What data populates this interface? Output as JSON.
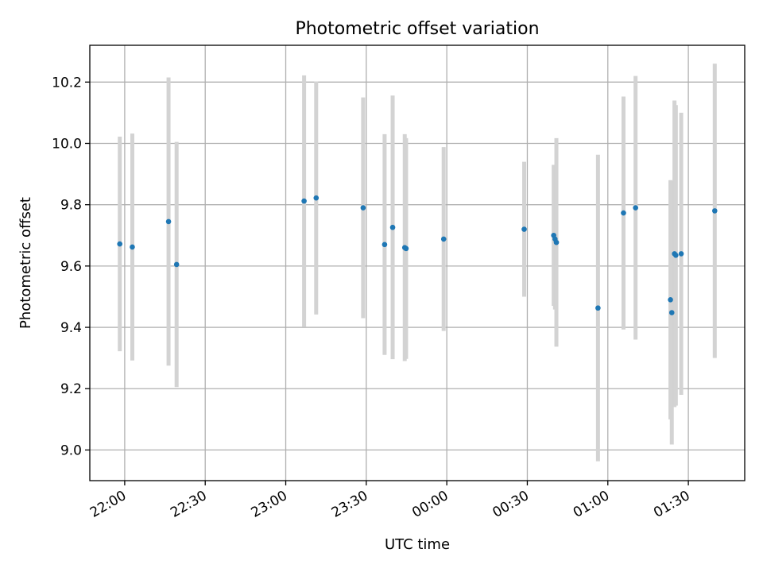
{
  "chart_data": {
    "type": "scatter",
    "title": "Photometric offset variation",
    "xlabel": "UTC time",
    "ylabel": "Photometric offset",
    "grid": true,
    "x_unit": "UTC time (HH:MM)",
    "xlim": [
      "21:47",
      "01:51"
    ],
    "ylim": [
      8.9,
      10.32
    ],
    "x_ticks": [
      "22:00",
      "22:30",
      "23:00",
      "23:30",
      "00:00",
      "00:30",
      "01:00",
      "01:30"
    ],
    "y_ticks": [
      9.0,
      9.2,
      9.4,
      9.6,
      9.8,
      10.0,
      10.2
    ],
    "point_color": "#1f77b4",
    "errorbar_color": "#d3d3d3",
    "points": [
      {
        "x": "21:58:10",
        "y": 9.672,
        "err": 0.35
      },
      {
        "x": "22:02:50",
        "y": 9.662,
        "err": 0.37
      },
      {
        "x": "22:16:20",
        "y": 9.745,
        "err": 0.47
      },
      {
        "x": "22:19:20",
        "y": 9.605,
        "err": 0.4
      },
      {
        "x": "23:06:50",
        "y": 9.812,
        "err": 0.41
      },
      {
        "x": "23:11:20",
        "y": 9.822,
        "err": 0.38
      },
      {
        "x": "23:28:50",
        "y": 9.79,
        "err": 0.36
      },
      {
        "x": "23:36:50",
        "y": 9.67,
        "err": 0.36
      },
      {
        "x": "23:39:50",
        "y": 9.726,
        "err": 0.43
      },
      {
        "x": "23:44:20",
        "y": 9.66,
        "err": 0.37
      },
      {
        "x": "23:44:50",
        "y": 9.657,
        "err": 0.36
      },
      {
        "x": "23:58:50",
        "y": 9.688,
        "err": 0.3
      },
      {
        "x": "00:28:50",
        "y": 9.72,
        "err": 0.22
      },
      {
        "x": "00:39:50",
        "y": 9.7,
        "err": 0.23
      },
      {
        "x": "00:40:20",
        "y": 9.688,
        "err": 0.23
      },
      {
        "x": "00:40:50",
        "y": 9.677,
        "err": 0.34
      },
      {
        "x": "00:56:20",
        "y": 9.463,
        "err": 0.5
      },
      {
        "x": "01:05:50",
        "y": 9.773,
        "err": 0.38
      },
      {
        "x": "01:10:20",
        "y": 9.79,
        "err": 0.43
      },
      {
        "x": "01:23:20",
        "y": 9.49,
        "err": 0.39
      },
      {
        "x": "01:23:50",
        "y": 9.448,
        "err": 0.43
      },
      {
        "x": "01:24:50",
        "y": 9.64,
        "err": 0.5
      },
      {
        "x": "01:25:20",
        "y": 9.635,
        "err": 0.49
      },
      {
        "x": "01:27:20",
        "y": 9.64,
        "err": 0.46
      },
      {
        "x": "01:39:50",
        "y": 9.78,
        "err": 0.48
      }
    ]
  }
}
